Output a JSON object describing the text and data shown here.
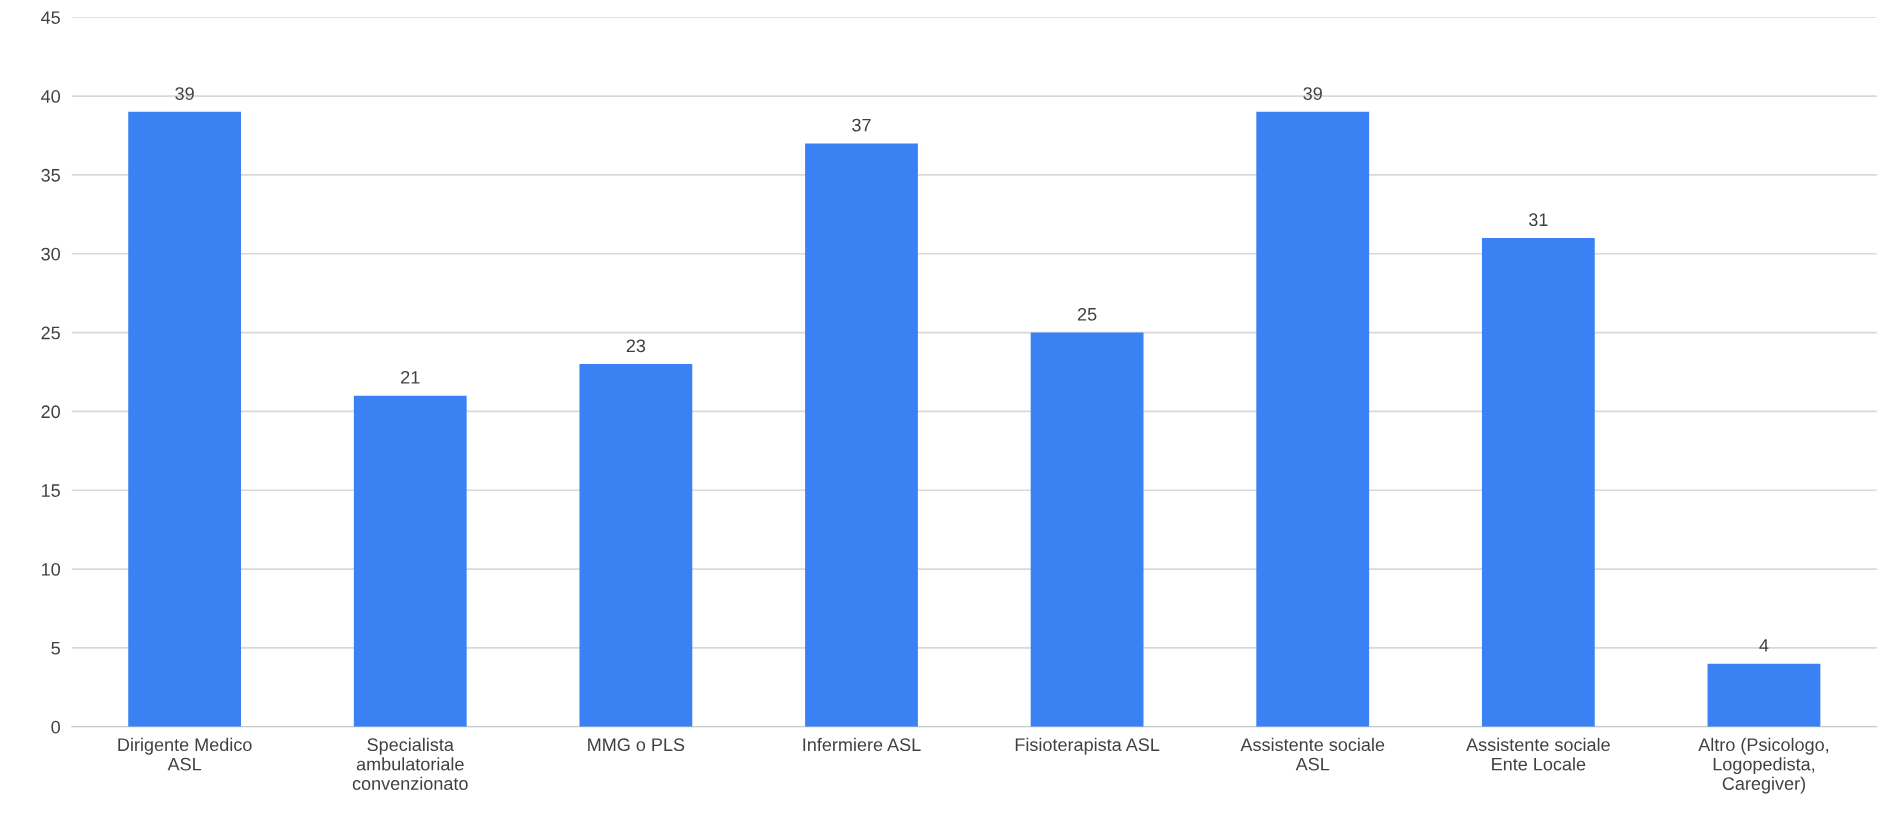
{
  "chart_data": {
    "type": "bar",
    "categories": [
      "Dirigente Medico\nASL",
      "Specialista\nambulatoriale\nconvenzionato",
      "MMG o PLS",
      "Infermiere ASL",
      "Fisioterapista ASL",
      "Assistente sociale\nASL",
      "Assistente sociale\nEnte Locale",
      "Altro (Psicologo,\nLogopedista,\nCaregiver)"
    ],
    "values": [
      39,
      21,
      23,
      37,
      25,
      39,
      31,
      4
    ],
    "color": "#3a82f4",
    "ylim": [
      0,
      45
    ],
    "yticks": [
      0,
      5,
      10,
      15,
      20,
      25,
      30,
      35,
      40,
      45
    ],
    "grid": "y",
    "data_labels": true,
    "legend": false
  }
}
